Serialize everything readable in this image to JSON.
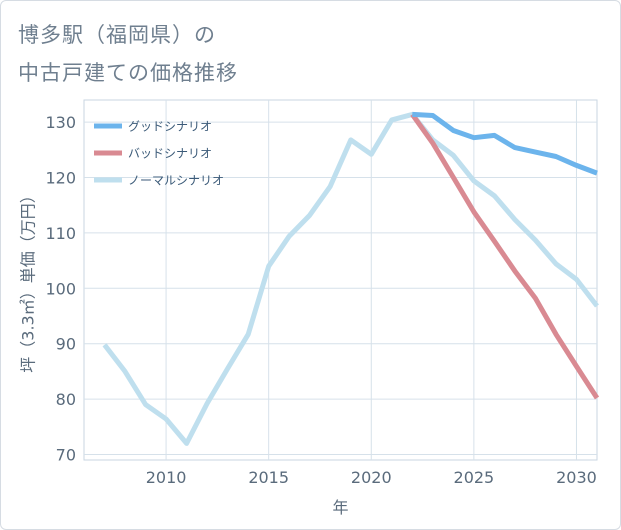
{
  "title_line1": "博多駅（福岡県）の",
  "title_line2": "中古戸建ての価格推移",
  "chart_data": {
    "type": "line",
    "title": "博多駅（福岡県）の中古戸建ての価格推移",
    "xlabel": "年",
    "ylabel": "坪（3.3㎡）単価（万円）",
    "xlim": [
      2006,
      2031
    ],
    "ylim": [
      69,
      134
    ],
    "x_ticks": [
      2010,
      2015,
      2020,
      2025,
      2030
    ],
    "y_ticks": [
      70,
      80,
      90,
      100,
      110,
      120,
      130
    ],
    "legend_position": "top-left",
    "series": [
      {
        "name": "グッドシナリオ",
        "color": "#6cb4ec",
        "x": [
          2022,
          2023,
          2024,
          2025,
          2026,
          2027,
          2028,
          2029,
          2030,
          2031
        ],
        "values": [
          131.4,
          131.2,
          128.5,
          127.2,
          127.6,
          125.4,
          124.6,
          123.8,
          122.2,
          120.8
        ]
      },
      {
        "name": "バッドシナリオ",
        "color": "#d98a92",
        "x": [
          2022,
          2023,
          2024,
          2025,
          2026,
          2027,
          2028,
          2029,
          2030,
          2031
        ],
        "values": [
          131.4,
          126.2,
          120.0,
          113.8,
          108.5,
          103.1,
          98.2,
          91.7,
          85.9,
          80.2
        ]
      },
      {
        "name": "ノーマルシナリオ",
        "color": "#bfdfee",
        "x": [
          2007,
          2008,
          2009,
          2010,
          2011,
          2012,
          2013,
          2014,
          2015,
          2016,
          2017,
          2018,
          2019,
          2020,
          2021,
          2022,
          2023,
          2024,
          2025,
          2026,
          2027,
          2028,
          2029,
          2030,
          2031
        ],
        "values": [
          89.8,
          85.0,
          79.0,
          76.4,
          72.0,
          79.2,
          85.5,
          91.7,
          104.0,
          109.4,
          113.2,
          118.4,
          126.8,
          124.2,
          130.4,
          131.4,
          126.8,
          124.0,
          119.4,
          116.7,
          112.4,
          108.7,
          104.4,
          101.6,
          96.8
        ]
      }
    ]
  }
}
